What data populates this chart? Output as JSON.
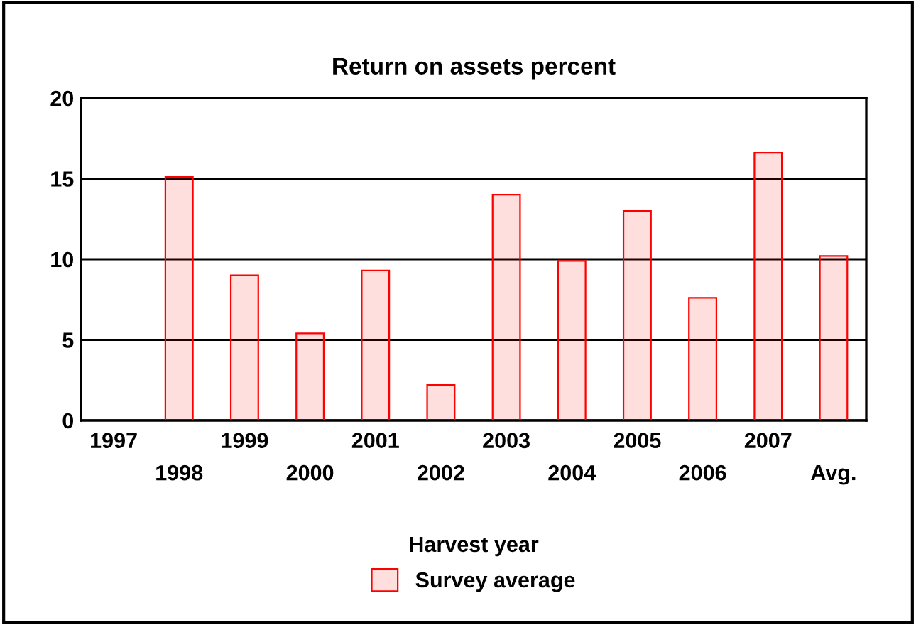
{
  "chart_data": {
    "type": "bar",
    "title": "Return on assets percent",
    "xlabel": "Harvest year",
    "categories": [
      "1997",
      "1998",
      "1999",
      "2000",
      "2001",
      "2002",
      "2003",
      "2004",
      "2005",
      "2006",
      "2007",
      "Avg."
    ],
    "series": [
      {
        "name": "Survey average",
        "color": "#ff0000",
        "values": [
          null,
          15.1,
          9.0,
          5.4,
          9.3,
          2.2,
          14.0,
          9.9,
          13.0,
          7.6,
          16.6,
          10.2
        ]
      }
    ],
    "ylim": [
      0,
      20
    ],
    "yticks": [
      0,
      5,
      10,
      15,
      20
    ],
    "grid": "y",
    "legend": "bottom"
  }
}
